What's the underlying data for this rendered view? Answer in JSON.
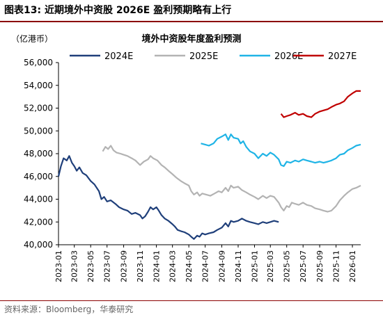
{
  "figure": {
    "title": "图表13:  近期境外中资股 2026E 盈利预期略有上行",
    "source": "资料来源：Bloomberg，华泰研究"
  },
  "chart_data": {
    "type": "line",
    "title": "境外中资股年度盈利预测",
    "unit_label": "（亿港币）",
    "xlabel": "",
    "ylabel": "",
    "ylim": [
      40000,
      56000
    ],
    "yticks": [
      40000,
      42000,
      44000,
      46000,
      48000,
      50000,
      52000,
      54000,
      56000
    ],
    "ytick_labels": [
      "40,000",
      "42,000",
      "44,000",
      "46,000",
      "48,000",
      "50,000",
      "52,000",
      "54,000",
      "56,000"
    ],
    "xlim": [
      "2023-01",
      "2026-02"
    ],
    "xtick_labels": [
      "2023-01",
      "2023-03",
      "2023-05",
      "2023-07",
      "2023-09",
      "2023-11",
      "2024-01",
      "2024-03",
      "2024-05",
      "2024-07",
      "2024-09",
      "2024-11",
      "2025-01",
      "2025-03",
      "2025-05",
      "2025-07",
      "2025-09",
      "2025-11",
      "2026-01"
    ],
    "grid": false,
    "legend_position": "top",
    "series": [
      {
        "name": "2024E",
        "color": "#1f3f7a",
        "points": [
          [
            "2023-01-01",
            46000
          ],
          [
            "2023-01-10",
            46900
          ],
          [
            "2023-01-20",
            47600
          ],
          [
            "2023-02-01",
            47400
          ],
          [
            "2023-02-10",
            47800
          ],
          [
            "2023-02-20",
            47200
          ],
          [
            "2023-03-01",
            46900
          ],
          [
            "2023-03-10",
            46500
          ],
          [
            "2023-03-20",
            46800
          ],
          [
            "2023-04-01",
            46300
          ],
          [
            "2023-04-15",
            46100
          ],
          [
            "2023-05-01",
            45600
          ],
          [
            "2023-05-15",
            45300
          ],
          [
            "2023-06-01",
            44700
          ],
          [
            "2023-06-10",
            44000
          ],
          [
            "2023-06-20",
            44200
          ],
          [
            "2023-07-01",
            43800
          ],
          [
            "2023-07-15",
            43900
          ],
          [
            "2023-08-01",
            43600
          ],
          [
            "2023-08-15",
            43300
          ],
          [
            "2023-09-01",
            43100
          ],
          [
            "2023-09-15",
            43000
          ],
          [
            "2023-10-01",
            42700
          ],
          [
            "2023-10-15",
            42800
          ],
          [
            "2023-11-01",
            42600
          ],
          [
            "2023-11-10",
            42300
          ],
          [
            "2023-11-20",
            42500
          ],
          [
            "2023-12-01",
            42900
          ],
          [
            "2023-12-10",
            43300
          ],
          [
            "2023-12-20",
            43100
          ],
          [
            "2024-01-01",
            43300
          ],
          [
            "2024-01-10",
            43000
          ],
          [
            "2024-01-20",
            42600
          ],
          [
            "2024-02-01",
            42300
          ],
          [
            "2024-02-15",
            42100
          ],
          [
            "2024-03-01",
            41800
          ],
          [
            "2024-03-10",
            41600
          ],
          [
            "2024-03-20",
            41300
          ],
          [
            "2024-04-01",
            41200
          ],
          [
            "2024-04-15",
            41100
          ],
          [
            "2024-05-01",
            40900
          ],
          [
            "2024-05-10",
            40700
          ],
          [
            "2024-05-20",
            40500
          ],
          [
            "2024-06-01",
            40800
          ],
          [
            "2024-06-10",
            40700
          ],
          [
            "2024-06-20",
            41000
          ],
          [
            "2024-07-01",
            40900
          ],
          [
            "2024-07-15",
            41000
          ],
          [
            "2024-08-01",
            41100
          ],
          [
            "2024-08-15",
            41300
          ],
          [
            "2024-09-01",
            41500
          ],
          [
            "2024-09-15",
            41900
          ],
          [
            "2024-09-25",
            41600
          ],
          [
            "2024-10-05",
            42100
          ],
          [
            "2024-10-15",
            42000
          ],
          [
            "2024-11-01",
            42100
          ],
          [
            "2024-11-15",
            42300
          ],
          [
            "2024-12-01",
            42100
          ],
          [
            "2024-12-15",
            42000
          ],
          [
            "2025-01-01",
            41900
          ],
          [
            "2025-01-15",
            41800
          ],
          [
            "2025-02-01",
            42000
          ],
          [
            "2025-02-15",
            41900
          ],
          [
            "2025-03-01",
            42000
          ],
          [
            "2025-03-15",
            42100
          ],
          [
            "2025-04-01",
            42000
          ]
        ]
      },
      {
        "name": "2025E",
        "color": "#b3b3b3",
        "points": [
          [
            "2023-06-15",
            48200
          ],
          [
            "2023-06-25",
            48600
          ],
          [
            "2023-07-05",
            48400
          ],
          [
            "2023-07-15",
            48700
          ],
          [
            "2023-07-25",
            48300
          ],
          [
            "2023-08-05",
            48100
          ],
          [
            "2023-08-20",
            48000
          ],
          [
            "2023-09-01",
            47900
          ],
          [
            "2023-09-15",
            47800
          ],
          [
            "2023-10-01",
            47600
          ],
          [
            "2023-10-15",
            47400
          ],
          [
            "2023-11-01",
            47000
          ],
          [
            "2023-11-15",
            47300
          ],
          [
            "2023-12-01",
            47500
          ],
          [
            "2023-12-10",
            47800
          ],
          [
            "2023-12-20",
            47600
          ],
          [
            "2024-01-05",
            47400
          ],
          [
            "2024-01-20",
            47000
          ],
          [
            "2024-02-01",
            46800
          ],
          [
            "2024-02-15",
            46500
          ],
          [
            "2024-03-01",
            46200
          ],
          [
            "2024-03-15",
            45900
          ],
          [
            "2024-04-01",
            45600
          ],
          [
            "2024-04-15",
            45400
          ],
          [
            "2024-05-01",
            45200
          ],
          [
            "2024-05-10",
            44700
          ],
          [
            "2024-05-20",
            44400
          ],
          [
            "2024-06-01",
            44600
          ],
          [
            "2024-06-10",
            44300
          ],
          [
            "2024-06-20",
            44500
          ],
          [
            "2024-07-05",
            44400
          ],
          [
            "2024-07-20",
            44300
          ],
          [
            "2024-08-05",
            44500
          ],
          [
            "2024-08-20",
            44700
          ],
          [
            "2024-09-01",
            44600
          ],
          [
            "2024-09-15",
            45000
          ],
          [
            "2024-09-25",
            44700
          ],
          [
            "2024-10-05",
            45200
          ],
          [
            "2024-10-15",
            45000
          ],
          [
            "2024-11-01",
            45100
          ],
          [
            "2024-11-15",
            44800
          ],
          [
            "2024-12-01",
            44600
          ],
          [
            "2024-12-15",
            44400
          ],
          [
            "2025-01-01",
            44200
          ],
          [
            "2025-01-15",
            44000
          ],
          [
            "2025-02-01",
            44300
          ],
          [
            "2025-02-15",
            44100
          ],
          [
            "2025-03-01",
            44300
          ],
          [
            "2025-03-15",
            44200
          ],
          [
            "2025-04-01",
            43700
          ],
          [
            "2025-04-10",
            43300
          ],
          [
            "2025-04-20",
            43000
          ],
          [
            "2025-05-01",
            43400
          ],
          [
            "2025-05-10",
            43300
          ],
          [
            "2025-05-20",
            43700
          ],
          [
            "2025-06-01",
            43600
          ],
          [
            "2025-06-15",
            43500
          ],
          [
            "2025-07-01",
            43700
          ],
          [
            "2025-07-15",
            43500
          ],
          [
            "2025-08-01",
            43400
          ],
          [
            "2025-08-15",
            43200
          ],
          [
            "2025-09-01",
            43100
          ],
          [
            "2025-09-15",
            43000
          ],
          [
            "2025-10-01",
            42900
          ],
          [
            "2025-10-15",
            43000
          ],
          [
            "2025-11-01",
            43400
          ],
          [
            "2025-11-15",
            43900
          ],
          [
            "2025-12-01",
            44300
          ],
          [
            "2025-12-15",
            44600
          ],
          [
            "2026-01-01",
            44900
          ],
          [
            "2026-01-15",
            45000
          ],
          [
            "2026-02-01",
            45200
          ]
        ]
      },
      {
        "name": "2026E",
        "color": "#1fb4e6",
        "points": [
          [
            "2024-06-15",
            48900
          ],
          [
            "2024-07-01",
            48800
          ],
          [
            "2024-07-15",
            48700
          ],
          [
            "2024-08-01",
            48900
          ],
          [
            "2024-08-15",
            49300
          ],
          [
            "2024-09-01",
            49500
          ],
          [
            "2024-09-15",
            49700
          ],
          [
            "2024-09-25",
            49200
          ],
          [
            "2024-10-05",
            49700
          ],
          [
            "2024-10-15",
            49400
          ],
          [
            "2024-11-01",
            49300
          ],
          [
            "2024-11-10",
            48900
          ],
          [
            "2024-11-20",
            49100
          ],
          [
            "2024-12-01",
            48600
          ],
          [
            "2024-12-15",
            48200
          ],
          [
            "2025-01-01",
            48000
          ],
          [
            "2025-01-15",
            47600
          ],
          [
            "2025-02-01",
            48000
          ],
          [
            "2025-02-15",
            47800
          ],
          [
            "2025-03-01",
            48100
          ],
          [
            "2025-03-15",
            47900
          ],
          [
            "2025-04-01",
            47500
          ],
          [
            "2025-04-10",
            47000
          ],
          [
            "2025-04-20",
            46900
          ],
          [
            "2025-05-01",
            47300
          ],
          [
            "2025-05-15",
            47200
          ],
          [
            "2025-06-01",
            47400
          ],
          [
            "2025-06-15",
            47300
          ],
          [
            "2025-07-01",
            47500
          ],
          [
            "2025-07-15",
            47400
          ],
          [
            "2025-08-01",
            47300
          ],
          [
            "2025-08-15",
            47200
          ],
          [
            "2025-09-01",
            47300
          ],
          [
            "2025-09-15",
            47200
          ],
          [
            "2025-10-01",
            47300
          ],
          [
            "2025-10-15",
            47400
          ],
          [
            "2025-11-01",
            47600
          ],
          [
            "2025-11-15",
            47900
          ],
          [
            "2025-12-01",
            48000
          ],
          [
            "2025-12-15",
            48300
          ],
          [
            "2026-01-01",
            48500
          ],
          [
            "2026-01-15",
            48700
          ],
          [
            "2026-02-01",
            48800
          ]
        ]
      },
      {
        "name": "2027E",
        "color": "#c00000",
        "points": [
          [
            "2025-04-10",
            51500
          ],
          [
            "2025-04-20",
            51200
          ],
          [
            "2025-05-01",
            51300
          ],
          [
            "2025-05-15",
            51400
          ],
          [
            "2025-06-01",
            51600
          ],
          [
            "2025-06-15",
            51400
          ],
          [
            "2025-07-01",
            51500
          ],
          [
            "2025-07-15",
            51300
          ],
          [
            "2025-08-01",
            51200
          ],
          [
            "2025-08-15",
            51500
          ],
          [
            "2025-09-01",
            51700
          ],
          [
            "2025-09-15",
            51800
          ],
          [
            "2025-10-01",
            51900
          ],
          [
            "2025-10-15",
            52100
          ],
          [
            "2025-11-01",
            52300
          ],
          [
            "2025-11-15",
            52400
          ],
          [
            "2025-12-01",
            52600
          ],
          [
            "2025-12-15",
            53000
          ],
          [
            "2026-01-01",
            53300
          ],
          [
            "2026-01-15",
            53500
          ],
          [
            "2026-02-01",
            53500
          ]
        ]
      }
    ]
  }
}
